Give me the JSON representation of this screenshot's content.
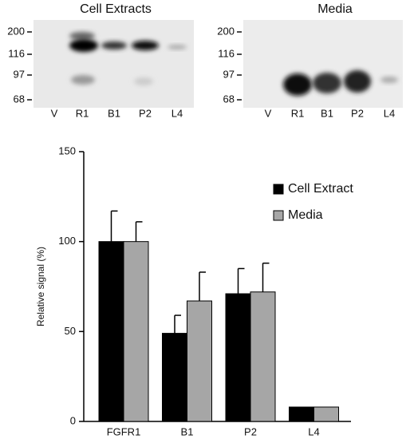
{
  "blots": [
    {
      "title": "Cell Extracts",
      "markers": [
        "200",
        "116",
        "97",
        "68"
      ],
      "lanes": [
        "V",
        "R1",
        "B1",
        "P2",
        "L4"
      ]
    },
    {
      "title": "Media",
      "markers": [
        "200",
        "116",
        "97",
        "68"
      ],
      "lanes": [
        "V",
        "R1",
        "B1",
        "P2",
        "L4"
      ]
    }
  ],
  "chart_data": {
    "type": "bar",
    "ylabel": "Relative signal (%)",
    "categories": [
      "FGFR1",
      "B1",
      "P2",
      "L4"
    ],
    "series": [
      {
        "name": "Cell Extract",
        "color": "#000000",
        "values": [
          100,
          49,
          71,
          8
        ],
        "errors": [
          17,
          10,
          14,
          null
        ]
      },
      {
        "name": "Media",
        "color": "#a6a6a6",
        "values": [
          100,
          67,
          72,
          8
        ],
        "errors": [
          11,
          16,
          16,
          null
        ]
      }
    ],
    "ylim": [
      0,
      150
    ],
    "yticks": [
      0,
      50,
      100,
      150
    ],
    "legend": "upper right"
  }
}
